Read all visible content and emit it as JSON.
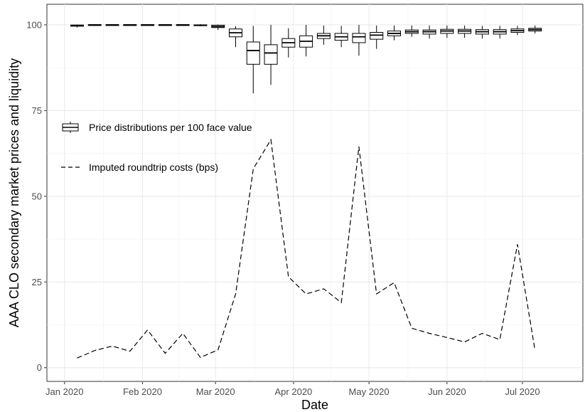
{
  "chart_data": {
    "type": "box+line",
    "xlabel": "Date",
    "ylabel": "AAA CLO secondary market prices and liquidity",
    "x_range": [
      "2019-12-25",
      "2020-07-25"
    ],
    "ylim": [
      -4,
      106
    ],
    "y_ticks": [
      0,
      25,
      50,
      75,
      100
    ],
    "x_ticks": [
      {
        "date": "2020-01-01",
        "label": "Jan 2020"
      },
      {
        "date": "2020-02-01",
        "label": "Feb 2020"
      },
      {
        "date": "2020-03-01",
        "label": "Mar 2020"
      },
      {
        "date": "2020-04-01",
        "label": "Apr 2020"
      },
      {
        "date": "2020-05-01",
        "label": "May 2020"
      },
      {
        "date": "2020-06-01",
        "label": "Jun 2020"
      },
      {
        "date": "2020-07-01",
        "label": "Jul 2020"
      }
    ],
    "grid": true,
    "legend": {
      "position": "left-inside",
      "entries": [
        {
          "label": "Price distributions per 100 face value",
          "symbol": "box"
        },
        {
          "label": "Imputed roundtrip costs (bps)",
          "symbol": "dashed-line"
        }
      ]
    },
    "series": [
      {
        "name": "Price distributions per 100 face value",
        "type": "box",
        "boxes": [
          {
            "date": "2020-01-06",
            "min": 99.2,
            "q1": 99.6,
            "median": 99.8,
            "q3": 99.95,
            "max": 100.1
          },
          {
            "date": "2020-01-13",
            "min": 99.7,
            "q1": 99.9,
            "median": 100.0,
            "q3": 100.05,
            "max": 100.2
          },
          {
            "date": "2020-01-20",
            "min": 99.8,
            "q1": 99.9,
            "median": 100.0,
            "q3": 100.05,
            "max": 100.2
          },
          {
            "date": "2020-01-27",
            "min": 99.8,
            "q1": 99.9,
            "median": 100.0,
            "q3": 100.05,
            "max": 100.2
          },
          {
            "date": "2020-02-03",
            "min": 99.8,
            "q1": 99.9,
            "median": 100.0,
            "q3": 100.05,
            "max": 100.2
          },
          {
            "date": "2020-02-10",
            "min": 99.8,
            "q1": 99.9,
            "median": 100.0,
            "q3": 100.05,
            "max": 100.2
          },
          {
            "date": "2020-02-17",
            "min": 99.8,
            "q1": 99.9,
            "median": 100.0,
            "q3": 100.05,
            "max": 100.2
          },
          {
            "date": "2020-02-24",
            "min": 99.6,
            "q1": 99.8,
            "median": 99.9,
            "q3": 100.0,
            "max": 100.2
          },
          {
            "date": "2020-03-02",
            "min": 98.5,
            "q1": 99.2,
            "median": 99.5,
            "q3": 99.9,
            "max": 100.1
          },
          {
            "date": "2020-03-09",
            "min": 93.5,
            "q1": 96.5,
            "median": 97.7,
            "q3": 98.8,
            "max": 99.6
          },
          {
            "date": "2020-03-16",
            "min": 80.0,
            "q1": 88.5,
            "median": 92.5,
            "q3": 95.0,
            "max": 99.7
          },
          {
            "date": "2020-03-23",
            "min": 82.5,
            "q1": 88.5,
            "median": 91.8,
            "q3": 94.2,
            "max": 100.0
          },
          {
            "date": "2020-03-30",
            "min": 90.5,
            "q1": 93.5,
            "median": 94.8,
            "q3": 96.0,
            "max": 99.0
          },
          {
            "date": "2020-04-06",
            "min": 90.8,
            "q1": 93.5,
            "median": 95.2,
            "q3": 96.8,
            "max": 100.0
          },
          {
            "date": "2020-04-13",
            "min": 94.2,
            "q1": 96.0,
            "median": 96.8,
            "q3": 97.5,
            "max": 99.8
          },
          {
            "date": "2020-04-20",
            "min": 93.5,
            "q1": 95.5,
            "median": 96.5,
            "q3": 97.5,
            "max": 99.7
          },
          {
            "date": "2020-04-27",
            "min": 91.0,
            "q1": 94.8,
            "median": 96.5,
            "q3": 97.5,
            "max": 100.0
          },
          {
            "date": "2020-05-04",
            "min": 93.0,
            "q1": 95.8,
            "median": 97.0,
            "q3": 97.8,
            "max": 99.8
          },
          {
            "date": "2020-05-11",
            "min": 95.5,
            "q1": 96.8,
            "median": 97.5,
            "q3": 98.2,
            "max": 99.8
          },
          {
            "date": "2020-05-18",
            "min": 96.5,
            "q1": 97.5,
            "median": 98.0,
            "q3": 98.5,
            "max": 99.8
          },
          {
            "date": "2020-05-25",
            "min": 96.0,
            "q1": 97.3,
            "median": 98.0,
            "q3": 98.5,
            "max": 99.8
          },
          {
            "date": "2020-06-01",
            "min": 96.2,
            "q1": 97.5,
            "median": 98.2,
            "q3": 98.7,
            "max": 99.8
          },
          {
            "date": "2020-06-08",
            "min": 96.2,
            "q1": 97.5,
            "median": 98.2,
            "q3": 98.7,
            "max": 99.8
          },
          {
            "date": "2020-06-15",
            "min": 96.0,
            "q1": 97.3,
            "median": 98.0,
            "q3": 98.6,
            "max": 99.7
          },
          {
            "date": "2020-06-22",
            "min": 96.0,
            "q1": 97.3,
            "median": 98.0,
            "q3": 98.6,
            "max": 99.7
          },
          {
            "date": "2020-06-29",
            "min": 97.0,
            "q1": 97.8,
            "median": 98.3,
            "q3": 98.8,
            "max": 99.7
          },
          {
            "date": "2020-07-06",
            "min": 97.5,
            "q1": 98.2,
            "median": 98.6,
            "q3": 99.0,
            "max": 99.8
          }
        ]
      },
      {
        "name": "Imputed roundtrip costs (bps)",
        "type": "line",
        "style": "dashed",
        "points": [
          {
            "date": "2020-01-06",
            "value": 2.8
          },
          {
            "date": "2020-01-13",
            "value": 5.0
          },
          {
            "date": "2020-01-20",
            "value": 6.3
          },
          {
            "date": "2020-01-27",
            "value": 4.8
          },
          {
            "date": "2020-02-03",
            "value": 11.0
          },
          {
            "date": "2020-02-10",
            "value": 4.2
          },
          {
            "date": "2020-02-17",
            "value": 10.0
          },
          {
            "date": "2020-02-24",
            "value": 3.0
          },
          {
            "date": "2020-03-02",
            "value": 5.2
          },
          {
            "date": "2020-03-09",
            "value": 21.5
          },
          {
            "date": "2020-03-16",
            "value": 58.0
          },
          {
            "date": "2020-03-23",
            "value": 66.5
          },
          {
            "date": "2020-03-30",
            "value": 26.5
          },
          {
            "date": "2020-04-06",
            "value": 21.5
          },
          {
            "date": "2020-04-13",
            "value": 23.0
          },
          {
            "date": "2020-04-20",
            "value": 19.0
          },
          {
            "date": "2020-04-27",
            "value": 64.5
          },
          {
            "date": "2020-05-04",
            "value": 21.5
          },
          {
            "date": "2020-05-11",
            "value": 24.8
          },
          {
            "date": "2020-05-18",
            "value": 11.5
          },
          {
            "date": "2020-05-25",
            "value": 10.0
          },
          {
            "date": "2020-06-01",
            "value": 8.8
          },
          {
            "date": "2020-06-08",
            "value": 7.5
          },
          {
            "date": "2020-06-15",
            "value": 10.0
          },
          {
            "date": "2020-06-22",
            "value": 8.2
          },
          {
            "date": "2020-06-29",
            "value": 36.0
          },
          {
            "date": "2020-07-06",
            "value": 5.0
          }
        ]
      }
    ]
  }
}
